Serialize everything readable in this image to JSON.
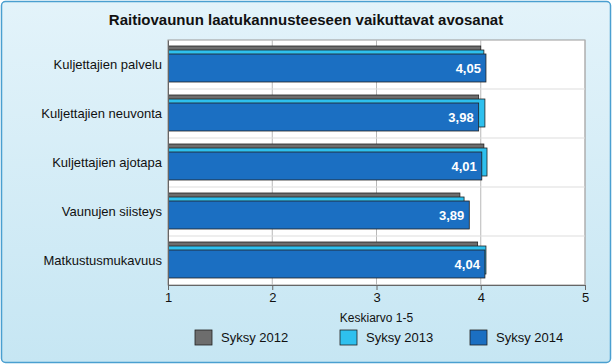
{
  "chart_data": {
    "type": "bar",
    "orientation": "horizontal",
    "title": "Raitiovaunun laatukannusteeseen vaikuttavat avosanat",
    "x_label": "Keskiarvo 1-5",
    "categories": [
      "Kuljettajien palvelu",
      "Kuljettajien neuvonta",
      "Kuljettajien ajotapa",
      "Vaunujen siisteys",
      "Matkustusmukavuus"
    ],
    "series": [
      {
        "name": "Syksy 2012",
        "color": "#6d6d6d",
        "values": [
          4.0,
          3.98,
          4.03,
          3.8,
          3.97
        ]
      },
      {
        "name": "Syksy 2013",
        "color": "#2ec0ee",
        "values": [
          4.03,
          4.04,
          4.06,
          3.84,
          4.05
        ]
      },
      {
        "name": "Syksy 2014",
        "color": "#1b6fc2",
        "values": [
          4.05,
          3.98,
          4.01,
          3.89,
          4.04
        ],
        "value_labels": [
          "4,05",
          "3,98",
          "4,01",
          "3,89",
          "4,04"
        ],
        "data_labels": true
      }
    ],
    "xlim": [
      1,
      5
    ],
    "xticks": [
      1,
      2,
      3,
      4,
      5
    ],
    "grid": true,
    "legend": "bottom"
  }
}
